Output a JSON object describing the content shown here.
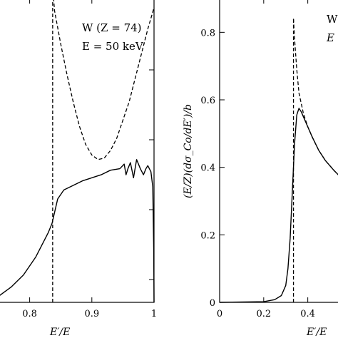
{
  "chart_data": [
    {
      "type": "line",
      "panel": "left",
      "xlabel": "E′/E",
      "ylabel": "",
      "xlim": [
        0.75,
        1.0
      ],
      "ylim": [
        0,
        1
      ],
      "xticks": [
        0.8,
        0.9,
        1
      ],
      "xtick_labels": [
        "0.8",
        "0.9",
        "1"
      ],
      "yticks": [],
      "annotations": [
        "W (Z = 74)",
        "E = 50 keV"
      ],
      "series": [
        {
          "style": "solid",
          "x": [
            0.75,
            0.77,
            0.79,
            0.8,
            0.81,
            0.82,
            0.83,
            0.836,
            0.845,
            0.855,
            0.87,
            0.885,
            0.9,
            0.915,
            0.93,
            0.945,
            0.952,
            0.955,
            0.958,
            0.962,
            0.967,
            0.972,
            0.978,
            0.983,
            0.987,
            0.99,
            0.995,
            0.998,
            0.9995,
            1.0
          ],
          "y": [
            0.02,
            0.05,
            0.09,
            0.12,
            0.15,
            0.19,
            0.23,
            0.26,
            0.34,
            0.37,
            0.385,
            0.4,
            0.41,
            0.42,
            0.435,
            0.44,
            0.455,
            0.42,
            0.44,
            0.46,
            0.41,
            0.47,
            0.44,
            0.42,
            0.44,
            0.45,
            0.43,
            0.38,
            0.18,
            0.0
          ]
        },
        {
          "style": "dashed",
          "x": [
            0.837,
            0.84,
            0.85,
            0.86,
            0.87,
            0.88,
            0.89,
            0.9,
            0.91,
            0.92,
            0.93,
            0.94,
            0.95,
            0.96,
            0.97,
            0.98,
            0.99,
            1.0
          ],
          "y": [
            1.04,
            0.96,
            0.85,
            0.75,
            0.66,
            0.58,
            0.52,
            0.485,
            0.47,
            0.475,
            0.5,
            0.54,
            0.6,
            0.66,
            0.74,
            0.82,
            0.9,
            0.97
          ]
        },
        {
          "style": "dashed-vertical",
          "x": [
            0.837,
            0.837
          ],
          "y": [
            0.0,
            1.04
          ]
        }
      ]
    },
    {
      "type": "line",
      "panel": "right",
      "xlabel": "E′/E",
      "ylabel": "(E/Z)(dσ_Co/dE′)/b",
      "xlim": [
        0,
        0.55
      ],
      "ylim": [
        0,
        0.9
      ],
      "xticks": [
        0,
        0.2,
        0.4
      ],
      "xtick_labels": [
        "0",
        "0.2",
        "0.4"
      ],
      "yticks": [
        0,
        0.2,
        0.4,
        0.6,
        0.8
      ],
      "ytick_labels": [
        "0",
        "0.2",
        "0.4",
        "0.6",
        "0.8"
      ],
      "annotations": [
        "W",
        "E"
      ],
      "series": [
        {
          "style": "solid",
          "x": [
            0.0,
            0.2,
            0.25,
            0.28,
            0.3,
            0.31,
            0.32,
            0.33,
            0.34,
            0.35,
            0.36,
            0.37,
            0.38,
            0.4,
            0.42,
            0.45,
            0.48,
            0.52,
            0.55
          ],
          "y": [
            0.0,
            0.002,
            0.008,
            0.02,
            0.05,
            0.1,
            0.19,
            0.33,
            0.47,
            0.555,
            0.575,
            0.565,
            0.55,
            0.52,
            0.49,
            0.45,
            0.42,
            0.39,
            0.37
          ]
        },
        {
          "style": "dashed",
          "x": [
            0.335,
            0.34,
            0.35,
            0.36,
            0.38,
            0.4,
            0.42,
            0.45,
            0.48,
            0.52,
            0.55
          ],
          "y": [
            0.84,
            0.78,
            0.69,
            0.62,
            0.56,
            0.52,
            0.49,
            0.45,
            0.42,
            0.39,
            0.37
          ]
        },
        {
          "style": "dashed-vertical",
          "x": [
            0.335,
            0.335
          ],
          "y": [
            0.0,
            0.84
          ]
        }
      ]
    }
  ]
}
